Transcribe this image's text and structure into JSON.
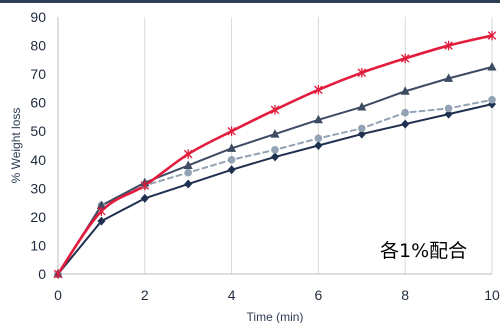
{
  "chart_data": {
    "type": "line",
    "title": "",
    "xlabel": "Time (min)",
    "ylabel": "% Weight loss",
    "xlim": [
      0,
      10
    ],
    "ylim": [
      0,
      90
    ],
    "xticks": [
      0,
      2,
      4,
      6,
      8,
      10
    ],
    "yticks": [
      0,
      10,
      20,
      30,
      40,
      50,
      60,
      70,
      80,
      90
    ],
    "grid": "vertical",
    "annotation": "各1%配合",
    "series": [
      {
        "color": "#e31c3d",
        "marker": "star",
        "dash": "solid",
        "smooth": true,
        "x": [
          0,
          1,
          2,
          3,
          4,
          5,
          6,
          7,
          8,
          9,
          10
        ],
        "values": [
          0,
          22,
          31,
          42,
          50,
          57.5,
          64.5,
          70.5,
          75.5,
          80,
          83.5
        ]
      },
      {
        "color": "#3d4b63",
        "marker": "triangle",
        "dash": "solid",
        "smooth": false,
        "x": [
          0,
          1,
          2,
          3,
          4,
          5,
          6,
          7,
          8,
          9,
          10
        ],
        "values": [
          0,
          24,
          32,
          38,
          44,
          49,
          54,
          58.5,
          64,
          68.5,
          72.5
        ]
      },
      {
        "color": "#93a3b3",
        "marker": "circle",
        "dash": "dashed",
        "smooth": false,
        "x": [
          0,
          1,
          2,
          3,
          4,
          5,
          6,
          7,
          8,
          9,
          10
        ],
        "values": [
          0,
          24,
          31,
          35.5,
          40,
          43.5,
          47.5,
          51,
          56.5,
          58,
          61
        ]
      },
      {
        "color": "#1f3050",
        "marker": "diamond",
        "dash": "solid",
        "smooth": false,
        "x": [
          0,
          1,
          2,
          3,
          4,
          5,
          6,
          7,
          8,
          9,
          10
        ],
        "values": [
          0,
          18.5,
          26.5,
          31.5,
          36.5,
          41,
          45,
          49,
          52.5,
          56,
          59.5
        ]
      }
    ]
  }
}
